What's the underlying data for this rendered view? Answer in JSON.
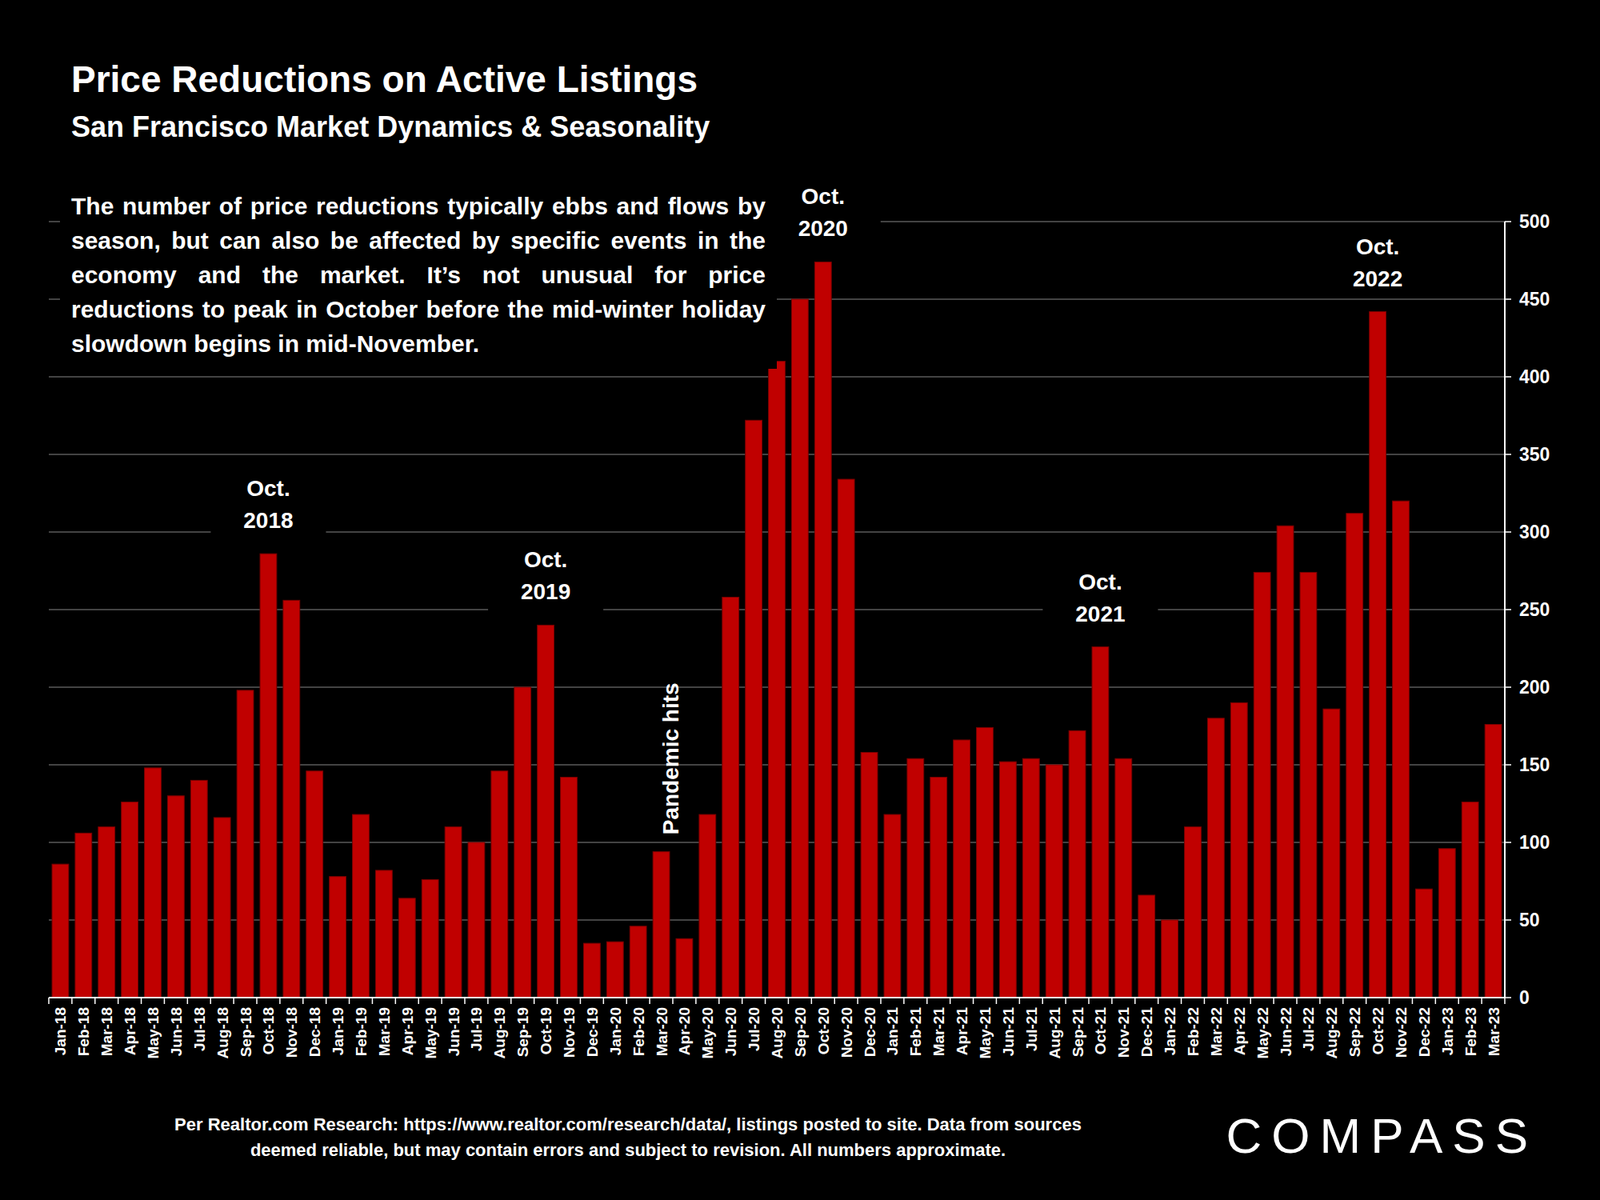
{
  "chart_data": {
    "type": "bar",
    "title": "Price Reductions on Active Listings",
    "subtitle": "San Francisco Market Dynamics & Seasonality",
    "description": "The number of price reductions typically ebbs and flows by season, but can also be affected by specific events in the economy and the market. It’s not unusual for price reductions to peak in October before the mid-winter holiday slowdown begins in mid-November.",
    "source": "Per Realtor.com Research:  https://www.realtor.com/research/data/, listings posted to site. Data from sources deemed reliable, but may contain errors and subject to revision. All numbers approximate.",
    "logo": "COMPASS",
    "categories": [
      "Jan-18",
      "Feb-18",
      "Mar-18",
      "Apr-18",
      "May-18",
      "Jun-18",
      "Jul-18",
      "Aug-18",
      "Sep-18",
      "Oct-18",
      "Nov-18",
      "Dec-18",
      "Jan-19",
      "Feb-19",
      "Mar-19",
      "Apr-19",
      "May-19",
      "Jun-19",
      "Jul-19",
      "Aug-19",
      "Sep-19",
      "Oct-19",
      "Nov-19",
      "Dec-19",
      "Jan-20",
      "Feb-20",
      "Mar-20",
      "Apr-20",
      "May-20",
      "Jun-20",
      "Jul-20",
      "Aug-20",
      "Sep-20",
      "Oct-20",
      "Nov-20",
      "Dec-20",
      "Jan-21",
      "Feb-21",
      "Mar-21",
      "Apr-21",
      "May-21",
      "Jun-21",
      "Jul-21",
      "Aug-21",
      "Sep-21",
      "Oct-21",
      "Nov-21",
      "Dec-21",
      "Jan-22",
      "Feb-22",
      "Mar-22",
      "Apr-22",
      "May-22",
      "Jun-22",
      "Jul-22",
      "Aug-22",
      "Sep-22",
      "Oct-22",
      "Nov-22",
      "Dec-22",
      "Jan-23",
      "Feb-23",
      "Mar-23"
    ],
    "values": [
      86,
      106,
      110,
      126,
      148,
      130,
      140,
      116,
      198,
      286,
      256,
      146,
      78,
      118,
      82,
      64,
      76,
      110,
      100,
      146,
      200,
      240,
      142,
      35,
      36,
      46,
      94,
      38,
      118,
      258,
      372,
      410,
      450,
      474,
      334,
      158,
      118,
      154,
      142,
      166,
      174,
      152,
      154,
      150,
      172,
      226,
      154,
      66,
      50,
      110,
      180,
      190,
      274,
      304,
      274,
      186,
      312,
      442,
      320,
      70,
      96,
      126,
      176
    ],
    "color": "#c00000",
    "ylim": [
      0,
      500
    ],
    "yticks": [
      0,
      50,
      100,
      150,
      200,
      250,
      300,
      350,
      400,
      450,
      500
    ],
    "grid": true,
    "annotations": [
      {
        "text": "Oct. 2018",
        "category": "Oct-18"
      },
      {
        "text": "Oct. 2019",
        "category": "Oct-19"
      },
      {
        "text": "Oct. 2020",
        "category": "Oct-20"
      },
      {
        "text": "Oct. 2021",
        "category": "Oct-21"
      },
      {
        "text": "Oct. 2022",
        "category": "Oct-22"
      }
    ],
    "callout": {
      "text": "Pandemic hits",
      "category": "Apr-20"
    }
  }
}
